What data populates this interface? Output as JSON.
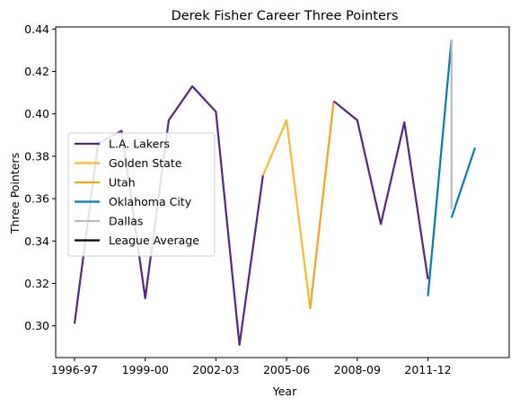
{
  "chart_data": {
    "type": "line",
    "title": "Derek Fisher Career Three Pointers",
    "xlabel": "Year",
    "ylabel": "Three Pointers",
    "x_ticks": [
      "1996-97",
      "1999-00",
      "2002-03",
      "2005-06",
      "2008-09",
      "2011-12"
    ],
    "y_ticks": [
      "0.30",
      "0.32",
      "0.34",
      "0.36",
      "0.38",
      "0.40",
      "0.42",
      "0.44"
    ],
    "xlim": [
      "1996-97",
      "2014-15"
    ],
    "ylim": [
      0.285,
      0.441
    ],
    "grid": false,
    "legend_position": "center-left",
    "series": [
      {
        "name": "L.A. Lakers",
        "color": "#552583",
        "points": [
          {
            "x": "1996-97",
            "y": 0.301
          },
          {
            "x": "1997-98",
            "y": 0.386
          },
          {
            "x": "1998-99",
            "y": 0.392
          },
          {
            "x": "1999-00",
            "y": 0.313
          },
          {
            "x": "2000-01",
            "y": 0.397
          },
          {
            "x": "2001-02",
            "y": 0.413
          },
          {
            "x": "2002-03",
            "y": 0.401
          },
          {
            "x": "2003-04",
            "y": 0.291
          },
          {
            "x": "2004-05",
            "y": 0.371
          }
        ]
      },
      {
        "name": "Golden State",
        "color": "#FDB927",
        "points": [
          {
            "x": "2004-05",
            "y": 0.371
          },
          {
            "x": "2005-06",
            "y": 0.397
          },
          {
            "x": "2006-07",
            "y": 0.308
          }
        ]
      },
      {
        "name": "Utah",
        "color": "#F9A01B",
        "points": [
          {
            "x": "2006-07",
            "y": 0.308
          },
          {
            "x": "2007-08",
            "y": 0.406
          }
        ]
      },
      {
        "name": "L.A. Lakers",
        "color": "#552583",
        "legend": false,
        "points": [
          {
            "x": "2007-08",
            "y": 0.406
          },
          {
            "x": "2008-09",
            "y": 0.397
          },
          {
            "x": "2009-10",
            "y": 0.348
          },
          {
            "x": "2010-11",
            "y": 0.396
          },
          {
            "x": "2011-12",
            "y": 0.322
          }
        ]
      },
      {
        "name": "Oklahoma City",
        "color": "#007AC1",
        "points": [
          {
            "x": "2011-12",
            "y": 0.314
          },
          {
            "x": "2012-13",
            "y": 0.435
          }
        ]
      },
      {
        "name": "Dallas",
        "color": "#BBBBBB",
        "points": [
          {
            "x": "2012-13",
            "y": 0.435
          },
          {
            "x": "2012-13",
            "y": 0.355
          }
        ]
      },
      {
        "name": "Oklahoma City",
        "color": "#007AC1",
        "legend": false,
        "points": [
          {
            "x": "2012-13",
            "y": 0.351
          },
          {
            "x": "2013-14",
            "y": 0.384
          }
        ]
      }
    ],
    "legend": [
      {
        "label": "L.A. Lakers",
        "color": "#552583"
      },
      {
        "label": "Golden State",
        "color": "#FDB927"
      },
      {
        "label": "Utah",
        "color": "#F9A01B"
      },
      {
        "label": "Oklahoma City",
        "color": "#007AC1"
      },
      {
        "label": "Dallas",
        "color": "#BBBBBB"
      },
      {
        "label": "League Average",
        "color": "#000000"
      }
    ]
  }
}
